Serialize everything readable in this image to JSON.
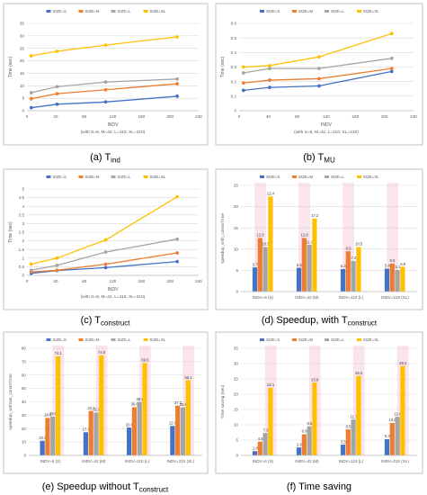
{
  "captions": [
    {
      "letter": "(a) T",
      "sub": "ind"
    },
    {
      "letter": "(b) T",
      "sub": "MU"
    },
    {
      "letter": "(c) T",
      "sub": "construct"
    },
    {
      "letter": "(d) Speedup, with T",
      "sub": "construct"
    },
    {
      "letter": "(e) Speedup without T",
      "sub": "construct"
    },
    {
      "letter": "(f) Time saving",
      "sub": ""
    }
  ],
  "colors": {
    "S": "#4472c4",
    "M": "#ed7d31",
    "L": "#a5a5a5",
    "XL": "#ffc000",
    "highlight": "#f7c5d8"
  },
  "chart_data": [
    {
      "type": "line",
      "title": "",
      "xlabel": "INDV",
      "note": "(with S=6, M=42, L=110, XL=210)",
      "ylabel": "Time (sec)",
      "x": [
        6,
        42,
        110,
        210
      ],
      "xlim": [
        0,
        240
      ],
      "xticks": [
        0,
        40,
        80,
        120,
        160,
        200,
        240
      ],
      "ylim": [
        0,
        35
      ],
      "yticks": [
        0,
        5,
        10,
        15,
        20,
        25,
        30,
        35
      ],
      "grid": true,
      "legend": "top",
      "series": [
        {
          "name": "SIZE=S",
          "values": [
            1.2,
            2.6,
            3.5,
            5.8
          ]
        },
        {
          "name": "SIZE=M",
          "values": [
            4.8,
            6.8,
            8.4,
            10.8
          ]
        },
        {
          "name": "SIZE=L",
          "values": [
            7.2,
            9.6,
            11.5,
            12.7
          ]
        },
        {
          "name": "SIZE=XL",
          "values": [
            22.0,
            23.8,
            26.3,
            29.6
          ]
        }
      ]
    },
    {
      "type": "line",
      "title": "",
      "xlabel": "INDV",
      "note": "(with S=6, M=42, L=110, XL=210)",
      "ylabel": "Time (sec)",
      "x": [
        6,
        42,
        110,
        210
      ],
      "xlim": [
        0,
        240
      ],
      "xticks": [
        0,
        40,
        80,
        120,
        160,
        200,
        240
      ],
      "ylim": [
        0,
        0.6
      ],
      "yticks": [
        0,
        0.1,
        0.2,
        0.3,
        0.4,
        0.5,
        0.6
      ],
      "grid": true,
      "legend": "top",
      "series": [
        {
          "name": "SIZE=S",
          "values": [
            0.14,
            0.16,
            0.17,
            0.27
          ]
        },
        {
          "name": "SIZE=M",
          "values": [
            0.19,
            0.21,
            0.22,
            0.29
          ]
        },
        {
          "name": "SIZE=L",
          "values": [
            0.26,
            0.29,
            0.29,
            0.36
          ]
        },
        {
          "name": "SIZE=XL",
          "values": [
            0.3,
            0.31,
            0.37,
            0.53
          ]
        }
      ]
    },
    {
      "type": "line",
      "title": "",
      "xlabel": "INDV",
      "note": "(with S=6, M=42, L=110, XL=210)",
      "ylabel": "Time (sec)",
      "x": [
        6,
        42,
        110,
        210
      ],
      "xlim": [
        0,
        240
      ],
      "xticks": [
        0,
        40,
        80,
        120,
        160,
        200,
        240
      ],
      "ylim": [
        0,
        5
      ],
      "yticks": [
        0,
        0.5,
        1,
        1.5,
        2,
        2.5,
        3,
        3.5,
        4,
        4.5,
        5
      ],
      "grid": true,
      "legend": "top",
      "series": [
        {
          "name": "SIZE=S",
          "values": [
            0.12,
            0.28,
            0.45,
            0.8
          ]
        },
        {
          "name": "SIZE=M",
          "values": [
            0.2,
            0.3,
            0.65,
            1.3
          ]
        },
        {
          "name": "SIZE=L",
          "values": [
            0.3,
            0.58,
            1.35,
            2.1
          ]
        },
        {
          "name": "SIZE=XL",
          "values": [
            0.65,
            1.0,
            2.05,
            4.55
          ]
        }
      ]
    },
    {
      "type": "bar",
      "title": "",
      "xlabel": "",
      "ylabel": "speedup_with_constrTime",
      "categories": [
        "INDV=6 (S)",
        "INDV=42 (M)",
        "INDV=110 (L)",
        "INDV=210 (XL)"
      ],
      "ylim": [
        0,
        25
      ],
      "yticks": [
        0,
        5,
        10,
        15,
        20,
        25
      ],
      "grid": true,
      "legend": "top",
      "highlight": "M",
      "series": [
        {
          "name": "SIZE=S",
          "values": [
            5.7,
            5.6,
            5.3,
            5.4
          ]
        },
        {
          "name": "SIZE=M",
          "values": [
            12.6,
            12.6,
            9.5,
            6.6
          ]
        },
        {
          "name": "SIZE=L",
          "values": [
            10.5,
            11.0,
            7.2,
            5.1
          ]
        },
        {
          "name": "SIZE=XL",
          "values": [
            22.4,
            17.2,
            10.5,
            5.8
          ]
        }
      ]
    },
    {
      "type": "bar",
      "title": "",
      "xlabel": "",
      "ylabel": "speedup_without_constrTime",
      "categories": [
        "INDV=6 (S)",
        "INDV=42 (M)",
        "INDV=110 (L)",
        "INDV=210 (XL)"
      ],
      "ylim": [
        0,
        80
      ],
      "yticks": [
        0,
        10,
        20,
        30,
        40,
        50,
        60,
        70,
        80
      ],
      "grid": true,
      "legend": "top",
      "highlight": "XL",
      "series": [
        {
          "name": "SIZE=S",
          "values": [
            10.9,
            17.3,
            20.8,
            22.0
          ]
        },
        {
          "name": "SIZE=M",
          "values": [
            28.0,
            33.2,
            36.0,
            37.2
          ]
        },
        {
          "name": "SIZE=L",
          "values": [
            29.0,
            32.0,
            39.9,
            35.9
          ]
        },
        {
          "name": "SIZE=XL",
          "values": [
            74.1,
            74.8,
            69.0,
            56.1
          ]
        }
      ]
    },
    {
      "type": "bar",
      "title": "",
      "xlabel": "",
      "ylabel": "Time saving (sec)",
      "categories": [
        "INDV=6 (S)",
        "INDV=42 (M)",
        "INDV=110 (L)",
        "INDV=210 (XL)"
      ],
      "ylim": [
        0,
        35
      ],
      "yticks": [
        0,
        5,
        10,
        15,
        20,
        25,
        30,
        35
      ],
      "grid": true,
      "legend": "top",
      "highlight": "XL",
      "series": [
        {
          "name": "SIZE=S",
          "values": [
            1.4,
            2.6,
            3.5,
            5.3
          ]
        },
        {
          "name": "SIZE=M",
          "values": [
            4.5,
            6.9,
            8.5,
            10.6
          ]
        },
        {
          "name": "SIZE=L",
          "values": [
            7.3,
            9.5,
            11.7,
            12.6
          ]
        },
        {
          "name": "SIZE=XL",
          "values": [
            22.1,
            23.8,
            26.0,
            29.2
          ]
        }
      ]
    }
  ]
}
